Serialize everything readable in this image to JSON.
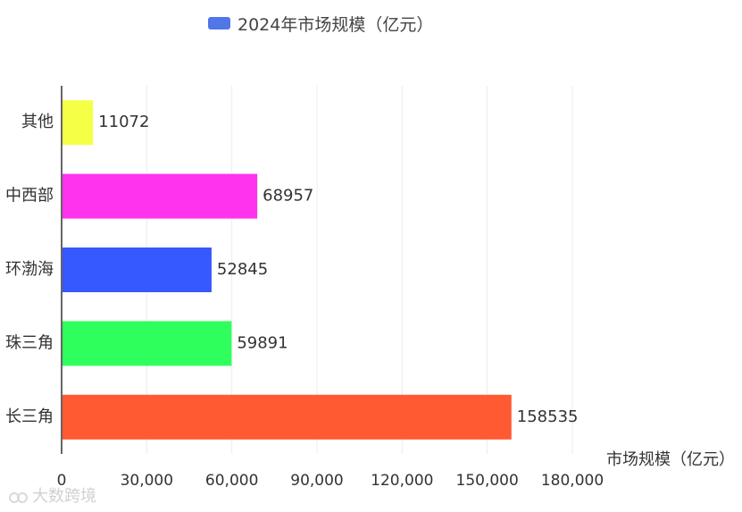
{
  "chart_data": {
    "type": "bar",
    "orientation": "horizontal",
    "title": "",
    "subtitle": "",
    "categories": [
      "其他",
      "中西部",
      "环渤海",
      "珠三角",
      "长三角"
    ],
    "series": [
      {
        "name": "2024年市场规模（亿元）",
        "values": [
          11072,
          68957,
          52845,
          59891,
          158535
        ]
      }
    ],
    "data_labels": [
      "11072",
      "68957",
      "52845",
      "59891",
      "158535"
    ],
    "x_ticks": [
      "0",
      "30,000",
      "60,000",
      "90,000",
      "120,000",
      "150,000",
      "180,000"
    ],
    "xlabel": "市场规模（亿元）",
    "ylabel": "",
    "xlim": [
      0,
      180000
    ],
    "grid": true,
    "legend": "top-center",
    "colors": [
      "#f4ff45",
      "#ff32ee",
      "#3658ff",
      "#2fff5d",
      "#ff5a32"
    ]
  },
  "watermark": {
    "text": "大数跨境"
  },
  "colors": {
    "legend_swatch": "#5275e8",
    "axis": "#666666",
    "grid": "#ececec",
    "text": "#333333",
    "watermark": "#cfcfcf"
  }
}
